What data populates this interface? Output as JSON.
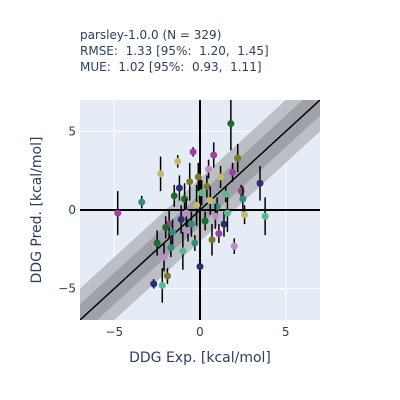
{
  "chart_data": {
    "type": "scatter",
    "title_lines": [
      "parsley-1.0.0 (N = 329)",
      "RMSE:  1.33 [95%:  1.20,  1.45]",
      "MUE:  1.02 [95%:  0.93,  1.11]"
    ],
    "xlabel": "DDG Exp. [kcal/mol]",
    "ylabel": "DDG Pred. [kcal/mol]",
    "xlim": [
      -7,
      7
    ],
    "ylim": [
      -7,
      7
    ],
    "x_ticks": [
      -5,
      0,
      5
    ],
    "y_ticks": [
      -5,
      0,
      5
    ],
    "grid": true,
    "bands": [
      2,
      1
    ],
    "colors": {
      "plot_bg": "#e5ecf6",
      "band_outer": "#bcbfc6",
      "band_inner": "#9ea1a8",
      "diagonal": "#000000",
      "point_palette": [
        "#a13fa0",
        "#2e8e7c",
        "#c7b96a",
        "#2f2b7a",
        "#5ab98f",
        "#1d6b2f",
        "#c08bc9",
        "#7b7a2a"
      ]
    },
    "points": [
      {
        "x": -4.8,
        "y": -0.2,
        "err": 1.4
      },
      {
        "x": -3.4,
        "y": 0.5,
        "err": 0.4
      },
      {
        "x": -2.3,
        "y": 2.3,
        "err": 1.1
      },
      {
        "x": -2.7,
        "y": -4.7,
        "err": 0.3
      },
      {
        "x": -2.2,
        "y": -4.8,
        "err": 1.1
      },
      {
        "x": -2.5,
        "y": -2.1,
        "err": 0.8
      },
      {
        "x": -2.1,
        "y": -3.0,
        "err": 0.9
      },
      {
        "x": -1.9,
        "y": -4.2,
        "err": 0.5
      },
      {
        "x": -1.8,
        "y": -0.9,
        "err": 0.9
      },
      {
        "x": -1.6,
        "y": -1.4,
        "err": 0.8
      },
      {
        "x": -1.3,
        "y": 3.1,
        "err": 0.4
      },
      {
        "x": -1.1,
        "y": -0.6,
        "err": 0.9
      },
      {
        "x": -1.0,
        "y": -2.6,
        "err": 1.2
      },
      {
        "x": -0.9,
        "y": 0.7,
        "err": 1.0
      },
      {
        "x": -0.7,
        "y": -1.3,
        "err": 0.7
      },
      {
        "x": -0.6,
        "y": 1.8,
        "err": 1.2
      },
      {
        "x": -0.4,
        "y": 3.7,
        "err": 0.3
      },
      {
        "x": -0.3,
        "y": -2.1,
        "err": 0.5
      },
      {
        "x": -0.2,
        "y": 0.3,
        "err": 1.3
      },
      {
        "x": 0.0,
        "y": -3.6,
        "err": 0.4
      },
      {
        "x": 0.1,
        "y": 1.1,
        "err": 0.8
      },
      {
        "x": 0.3,
        "y": -0.7,
        "err": 0.6
      },
      {
        "x": 0.5,
        "y": 2.6,
        "err": 0.6
      },
      {
        "x": 0.7,
        "y": -1.9,
        "err": 1.0
      },
      {
        "x": 0.8,
        "y": 3.5,
        "err": 0.8
      },
      {
        "x": 1.0,
        "y": 0.2,
        "err": 0.6
      },
      {
        "x": 1.2,
        "y": 2.1,
        "err": 0.7
      },
      {
        "x": 1.4,
        "y": -0.9,
        "err": 0.8
      },
      {
        "x": 1.6,
        "y": -0.2,
        "err": 1.2
      },
      {
        "x": 1.8,
        "y": 5.5,
        "err": 1.7
      },
      {
        "x": 2.0,
        "y": -2.3,
        "err": 0.5
      },
      {
        "x": 2.2,
        "y": 3.3,
        "err": 0.9
      },
      {
        "x": 2.4,
        "y": 1.2,
        "err": 0.4
      },
      {
        "x": 2.5,
        "y": 0.7,
        "err": 0.8
      },
      {
        "x": 2.6,
        "y": -0.3,
        "err": 0.6
      },
      {
        "x": 3.5,
        "y": 1.7,
        "err": 1.1
      },
      {
        "x": 3.8,
        "y": -0.4,
        "err": 1.2
      },
      {
        "x": -1.5,
        "y": 0.9,
        "err": 0.7
      },
      {
        "x": -0.8,
        "y": -0.2,
        "err": 0.9
      },
      {
        "x": 0.4,
        "y": 1.5,
        "err": 0.7
      },
      {
        "x": 1.1,
        "y": -1.5,
        "err": 0.6
      },
      {
        "x": -0.5,
        "y": -0.9,
        "err": 0.8
      },
      {
        "x": 0.6,
        "y": 0.6,
        "err": 0.9
      },
      {
        "x": -1.2,
        "y": 1.4,
        "err": 0.8
      },
      {
        "x": 1.5,
        "y": 1.0,
        "err": 0.5
      },
      {
        "x": -2.0,
        "y": -1.1,
        "err": 0.7
      },
      {
        "x": 0.9,
        "y": -0.4,
        "err": 0.8
      },
      {
        "x": -0.1,
        "y": 2.1,
        "err": 0.9
      },
      {
        "x": 1.9,
        "y": 2.4,
        "err": 0.6
      },
      {
        "x": -1.7,
        "y": -2.4,
        "err": 0.6
      }
    ]
  }
}
